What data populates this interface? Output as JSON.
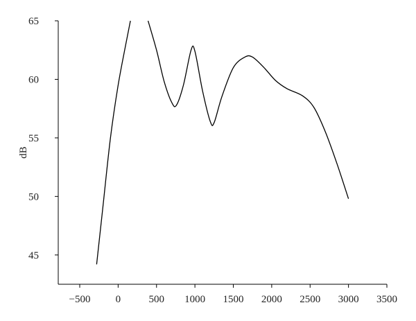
{
  "chart_data": {
    "type": "line",
    "ylabel": "dB",
    "x": [
      -280,
      -200,
      -100,
      0,
      100,
      160,
      null,
      390,
      500,
      600,
      700,
      760,
      850,
      950,
      1000,
      1100,
      1200,
      1250,
      1350,
      1500,
      1650,
      1750,
      1900,
      2050,
      2200,
      2400,
      2550,
      2700,
      2850,
      3000
    ],
    "series": [
      {
        "color": "#000000",
        "values": [
          44.2,
          49,
          55,
          59.5,
          63,
          65,
          null,
          65,
          62.5,
          59.8,
          58.0,
          57.8,
          59.5,
          62.5,
          62.4,
          59,
          56.4,
          56.3,
          58.5,
          61,
          61.9,
          61.9,
          61,
          59.9,
          59.2,
          58.6,
          57.6,
          55.5,
          52.8,
          49.8
        ]
      }
    ],
    "xlim": [
      -780,
      3500
    ],
    "ylim": [
      42.5,
      65
    ],
    "xticks": [
      {
        "value": -500,
        "label": "−500"
      },
      0,
      500,
      1000,
      1500,
      2000,
      2500,
      3000,
      3500
    ],
    "yticks": [
      45,
      50,
      55,
      60,
      65
    ]
  }
}
